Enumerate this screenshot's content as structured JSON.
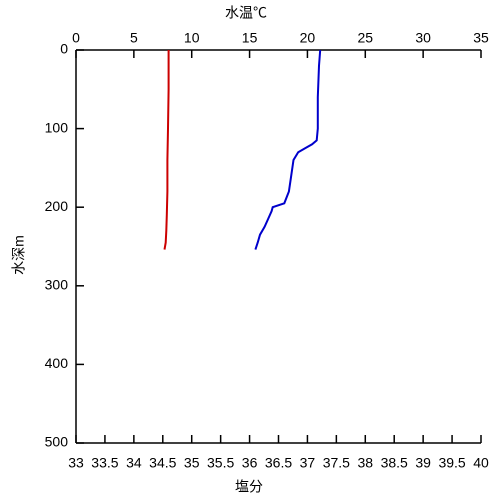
{
  "chart_data": {
    "type": "line",
    "xlabel": "塩分",
    "xlabel_color": "#cc0000",
    "x2label": "水温℃",
    "x2label_color": "#0000cc",
    "ylabel": "水深m",
    "xlim": [
      33,
      40
    ],
    "xticks": [
      33,
      33.5,
      34,
      34.5,
      35,
      35.5,
      36,
      36.5,
      37,
      37.5,
      38,
      38.5,
      39,
      39.5,
      40
    ],
    "x2lim": [
      0,
      35
    ],
    "x2ticks": [
      0,
      5,
      10,
      15,
      20,
      25,
      30,
      35
    ],
    "ylim": [
      0,
      500
    ],
    "yticks": [
      0,
      100,
      200,
      300,
      400,
      500
    ],
    "y_inverted": true,
    "grid": false,
    "series": [
      {
        "color": "#cc0000",
        "axis": "x",
        "x": [
          34.6,
          34.6,
          34.59,
          34.58,
          34.58,
          34.57,
          34.56,
          34.55,
          34.53
        ],
        "y": [
          0,
          50,
          100,
          140,
          180,
          210,
          230,
          245,
          254
        ]
      },
      {
        "color": "#0000cc",
        "axis": "x2",
        "x": [
          21.1,
          21.0,
          20.9,
          20.9,
          20.8,
          20.4,
          19.8,
          19.2,
          18.8,
          18.6,
          18.4,
          18.0,
          17.0,
          16.9,
          16.6,
          16.3,
          15.9,
          15.7,
          15.5
        ],
        "y": [
          0,
          20,
          60,
          100,
          115,
          120,
          125,
          130,
          140,
          160,
          180,
          195,
          200,
          205,
          215,
          225,
          235,
          245,
          254
        ]
      }
    ]
  }
}
